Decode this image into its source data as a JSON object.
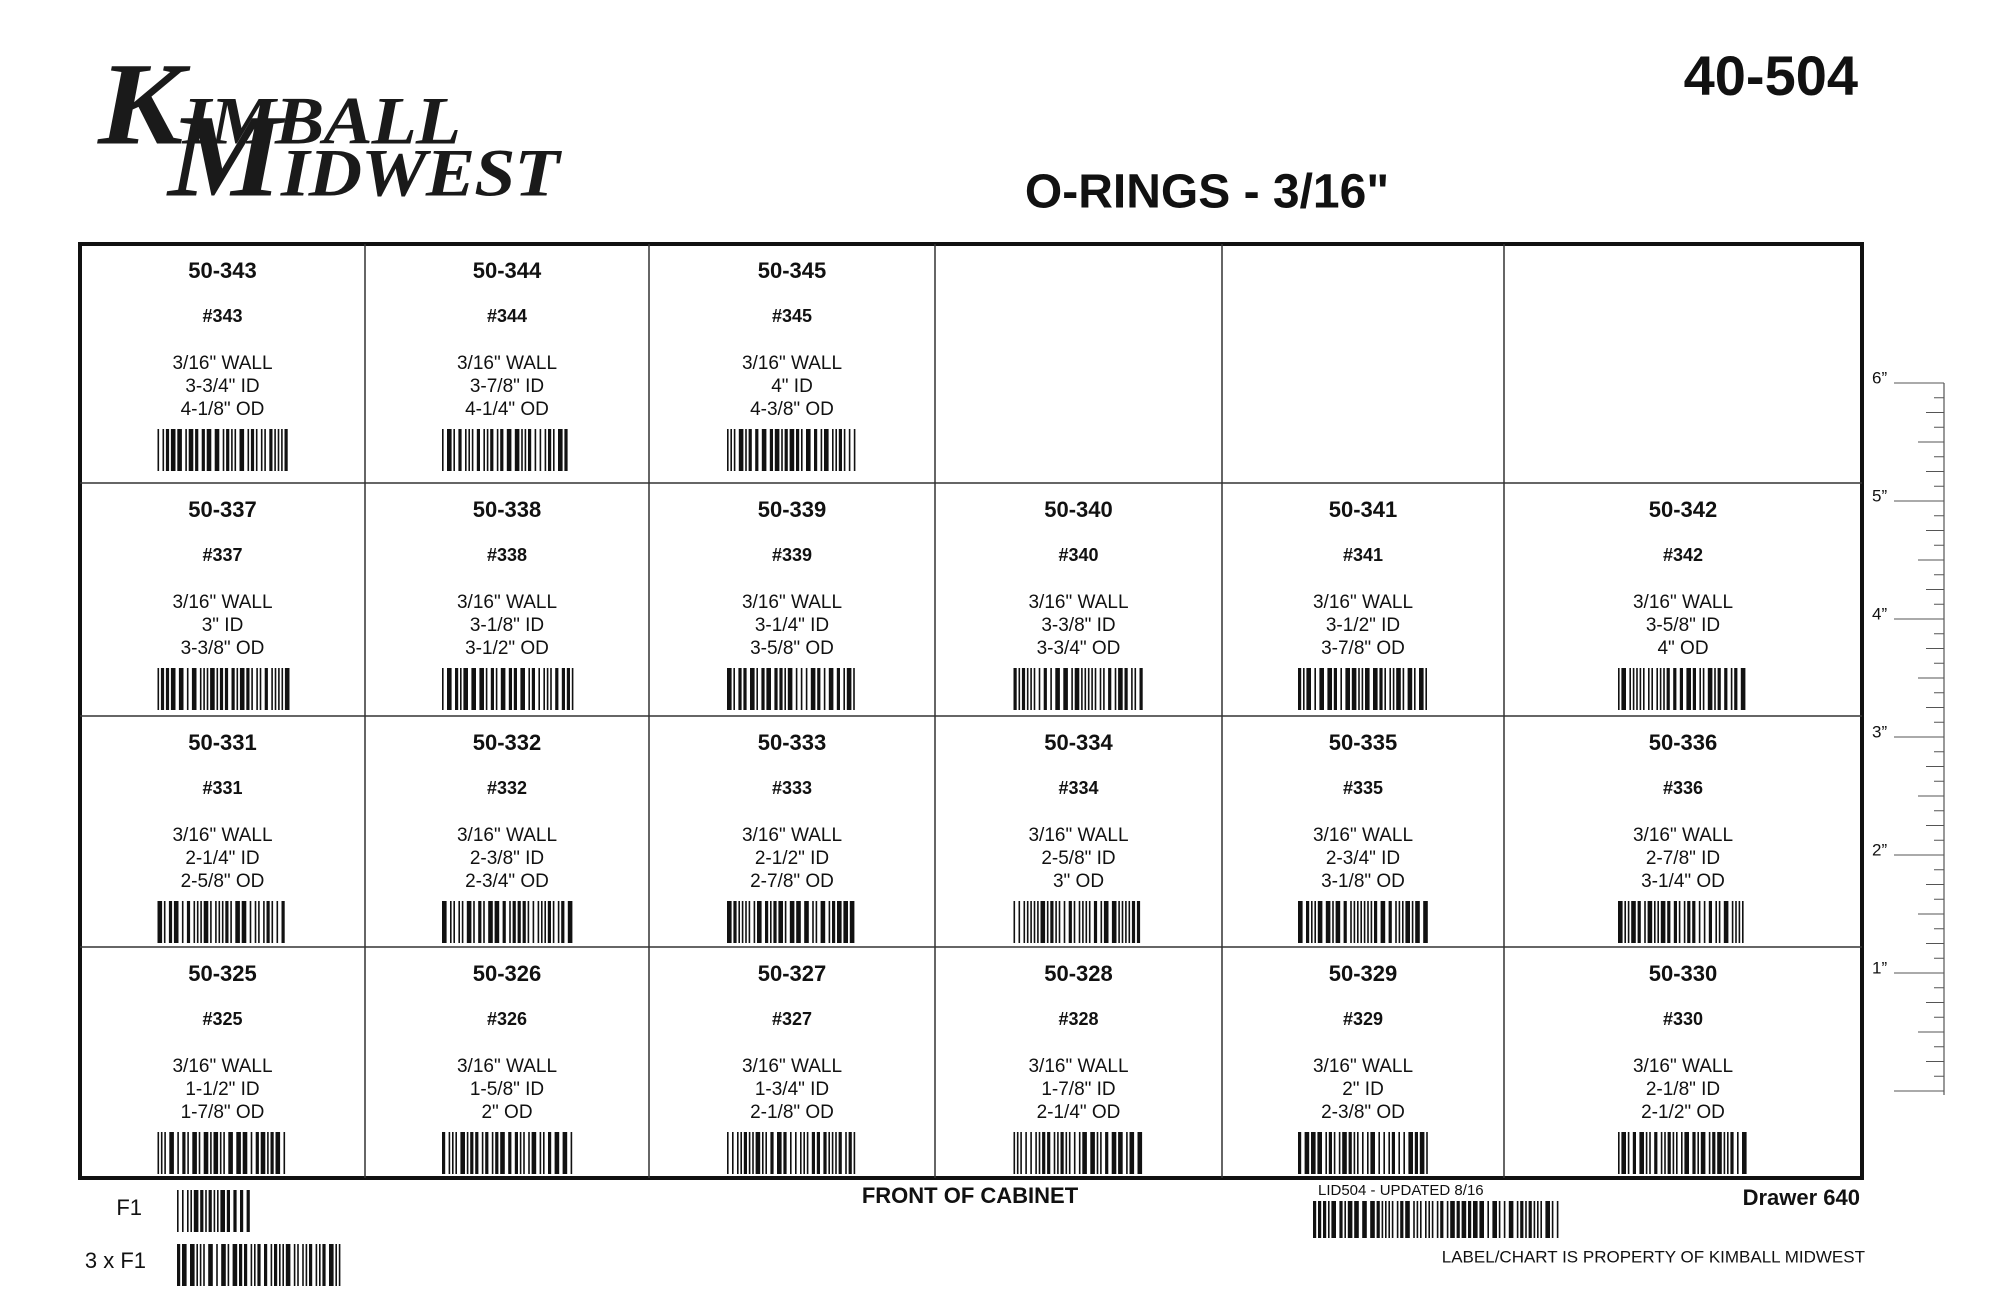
{
  "header": {
    "logo_line1": "KIMBALL",
    "logo_line2": "MIDWEST",
    "code": "40-504",
    "title": "O-RINGS - 3/16\""
  },
  "table": {
    "rows": [
      [
        {
          "part": "50-343",
          "number": "#343",
          "wall": "3/16\" WALL",
          "id": "3-3/4\" ID",
          "od": "4-1/8\" OD"
        },
        {
          "part": "50-344",
          "number": "#344",
          "wall": "3/16\" WALL",
          "id": "3-7/8\" ID",
          "od": "4-1/4\" OD"
        },
        {
          "part": "50-345",
          "number": "#345",
          "wall": "3/16\" WALL",
          "id": "4\" ID",
          "od": "4-3/8\" OD"
        },
        null,
        null,
        null
      ],
      [
        {
          "part": "50-337",
          "number": "#337",
          "wall": "3/16\" WALL",
          "id": "3\" ID",
          "od": "3-3/8\" OD"
        },
        {
          "part": "50-338",
          "number": "#338",
          "wall": "3/16\" WALL",
          "id": "3-1/8\" ID",
          "od": "3-1/2\" OD"
        },
        {
          "part": "50-339",
          "number": "#339",
          "wall": "3/16\" WALL",
          "id": "3-1/4\" ID",
          "od": "3-5/8\" OD"
        },
        {
          "part": "50-340",
          "number": "#340",
          "wall": "3/16\" WALL",
          "id": "3-3/8\" ID",
          "od": "3-3/4\" OD"
        },
        {
          "part": "50-341",
          "number": "#341",
          "wall": "3/16\" WALL",
          "id": "3-1/2\" ID",
          "od": "3-7/8\" OD"
        },
        {
          "part": "50-342",
          "number": "#342",
          "wall": "3/16\" WALL",
          "id": "3-5/8\" ID",
          "od": "4\" OD"
        }
      ],
      [
        {
          "part": "50-331",
          "number": "#331",
          "wall": "3/16\" WALL",
          "id": "2-1/4\" ID",
          "od": "2-5/8\" OD"
        },
        {
          "part": "50-332",
          "number": "#332",
          "wall": "3/16\" WALL",
          "id": "2-3/8\" ID",
          "od": "2-3/4\" OD"
        },
        {
          "part": "50-333",
          "number": "#333",
          "wall": "3/16\" WALL",
          "id": "2-1/2\" ID",
          "od": "2-7/8\" OD"
        },
        {
          "part": "50-334",
          "number": "#334",
          "wall": "3/16\" WALL",
          "id": "2-5/8\" ID",
          "od": "3\" OD"
        },
        {
          "part": "50-335",
          "number": "#335",
          "wall": "3/16\" WALL",
          "id": "2-3/4\" ID",
          "od": "3-1/8\" OD"
        },
        {
          "part": "50-336",
          "number": "#336",
          "wall": "3/16\" WALL",
          "id": "2-7/8\" ID",
          "od": "3-1/4\" OD"
        }
      ],
      [
        {
          "part": "50-325",
          "number": "#325",
          "wall": "3/16\" WALL",
          "id": "1-1/2\" ID",
          "od": "1-7/8\" OD"
        },
        {
          "part": "50-326",
          "number": "#326",
          "wall": "3/16\" WALL",
          "id": "1-5/8\" ID",
          "od": "2\" OD"
        },
        {
          "part": "50-327",
          "number": "#327",
          "wall": "3/16\" WALL",
          "id": "1-3/4\" ID",
          "od": "2-1/8\" OD"
        },
        {
          "part": "50-328",
          "number": "#328",
          "wall": "3/16\" WALL",
          "id": "1-7/8\" ID",
          "od": "2-1/4\" OD"
        },
        {
          "part": "50-329",
          "number": "#329",
          "wall": "3/16\" WALL",
          "id": "2\" ID",
          "od": "2-3/8\" OD"
        },
        {
          "part": "50-330",
          "number": "#330",
          "wall": "3/16\" WALL",
          "id": "2-1/8\" ID",
          "od": "2-1/2\" OD"
        }
      ]
    ]
  },
  "ruler": {
    "labels": [
      "6”",
      "5”",
      "4”",
      "3”",
      "2”",
      "1”"
    ]
  },
  "footer": {
    "f1": "F1",
    "f1x3": "3 x F1",
    "front": "FRONT OF CABINET",
    "lid": "LID504 - UPDATED 8/16",
    "drawer": "Drawer 640",
    "property": "LABEL/CHART IS PROPERTY OF KIMBALL MIDWEST"
  }
}
